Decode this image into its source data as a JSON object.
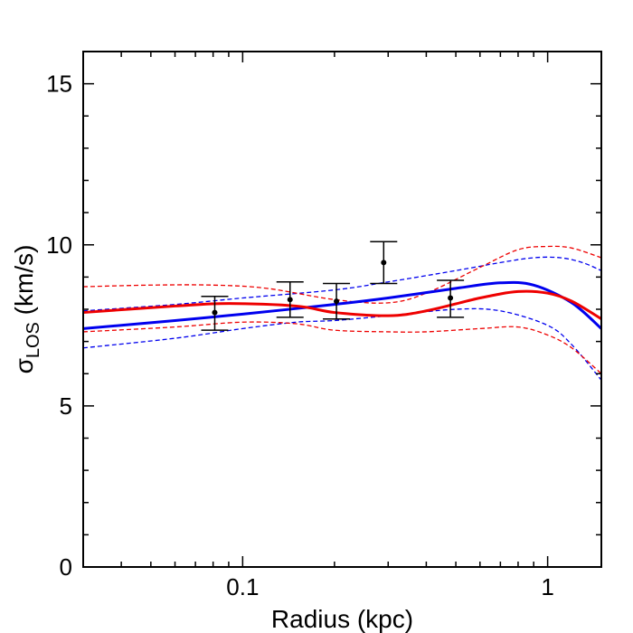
{
  "chart_data": {
    "type": "line",
    "xscale": "log",
    "xlim": [
      0.03,
      1.5
    ],
    "ylim": [
      0,
      16
    ],
    "xlabel": "Radius (kpc)",
    "ylabel_main": "σ",
    "ylabel_sub": "LOS",
    "ylabel_tail": " (km/s)",
    "x_tick_labels": [
      {
        "value": 0.1,
        "label": "0.1"
      },
      {
        "value": 1,
        "label": "1"
      }
    ],
    "y_tick_labels": [
      {
        "value": 0,
        "label": "0"
      },
      {
        "value": 5,
        "label": "5"
      },
      {
        "value": 10,
        "label": "10"
      },
      {
        "value": 15,
        "label": "15"
      }
    ],
    "grid": false,
    "points": [
      {
        "x": 0.081,
        "y": 7.9,
        "yerr_low": 7.35,
        "yerr_high": 8.4
      },
      {
        "x": 0.143,
        "y": 8.3,
        "yerr_low": 7.75,
        "yerr_high": 8.85
      },
      {
        "x": 0.203,
        "y": 8.25,
        "yerr_low": 7.7,
        "yerr_high": 8.8
      },
      {
        "x": 0.29,
        "y": 9.45,
        "yerr_low": 8.8,
        "yerr_high": 10.1
      },
      {
        "x": 0.48,
        "y": 8.35,
        "yerr_low": 7.75,
        "yerr_high": 8.9
      }
    ],
    "series": [
      {
        "color": "#0000ee",
        "style": "solid",
        "width": 3,
        "x": [
          0.03,
          0.06,
          0.1,
          0.2,
          0.3,
          0.5,
          0.7,
          0.9,
          1.2,
          1.5
        ],
        "y": [
          7.4,
          7.65,
          7.85,
          8.15,
          8.35,
          8.65,
          8.82,
          8.75,
          8.2,
          7.4
        ]
      },
      {
        "color": "#ee0000",
        "style": "solid",
        "width": 3,
        "x": [
          0.03,
          0.06,
          0.09,
          0.15,
          0.2,
          0.3,
          0.4,
          0.6,
          0.8,
          1.0,
          1.2,
          1.5
        ],
        "y": [
          7.9,
          8.1,
          8.18,
          8.1,
          7.9,
          7.8,
          7.95,
          8.35,
          8.55,
          8.5,
          8.25,
          7.7
        ]
      },
      {
        "color": "#0000ee",
        "style": "dashed",
        "width": 1.3,
        "x": [
          0.03,
          0.06,
          0.1,
          0.2,
          0.3,
          0.5,
          0.7,
          0.9,
          1.1,
          1.3,
          1.5
        ],
        "y": [
          7.95,
          8.15,
          8.35,
          8.6,
          8.85,
          9.2,
          9.45,
          9.6,
          9.6,
          9.45,
          9.2
        ]
      },
      {
        "color": "#0000ee",
        "style": "dashed",
        "width": 1.3,
        "x": [
          0.03,
          0.06,
          0.1,
          0.15,
          0.2,
          0.3,
          0.5,
          0.7,
          1.0,
          1.2,
          1.5
        ],
        "y": [
          6.8,
          7.1,
          7.4,
          7.6,
          7.65,
          7.8,
          8.0,
          7.95,
          7.5,
          6.9,
          5.8
        ]
      },
      {
        "color": "#ee0000",
        "style": "dashed",
        "width": 1.3,
        "x": [
          0.03,
          0.05,
          0.08,
          0.12,
          0.2,
          0.3,
          0.4,
          0.6,
          0.8,
          1.0,
          1.2,
          1.5
        ],
        "y": [
          8.7,
          8.75,
          8.75,
          8.65,
          8.3,
          8.2,
          8.5,
          9.3,
          9.85,
          9.95,
          9.9,
          9.6
        ]
      },
      {
        "color": "#ee0000",
        "style": "dashed",
        "width": 1.3,
        "x": [
          0.03,
          0.06,
          0.1,
          0.15,
          0.2,
          0.3,
          0.4,
          0.6,
          0.8,
          1.0,
          1.2,
          1.5
        ],
        "y": [
          7.3,
          7.45,
          7.6,
          7.55,
          7.35,
          7.3,
          7.3,
          7.4,
          7.45,
          7.2,
          6.8,
          6.0
        ]
      }
    ]
  }
}
